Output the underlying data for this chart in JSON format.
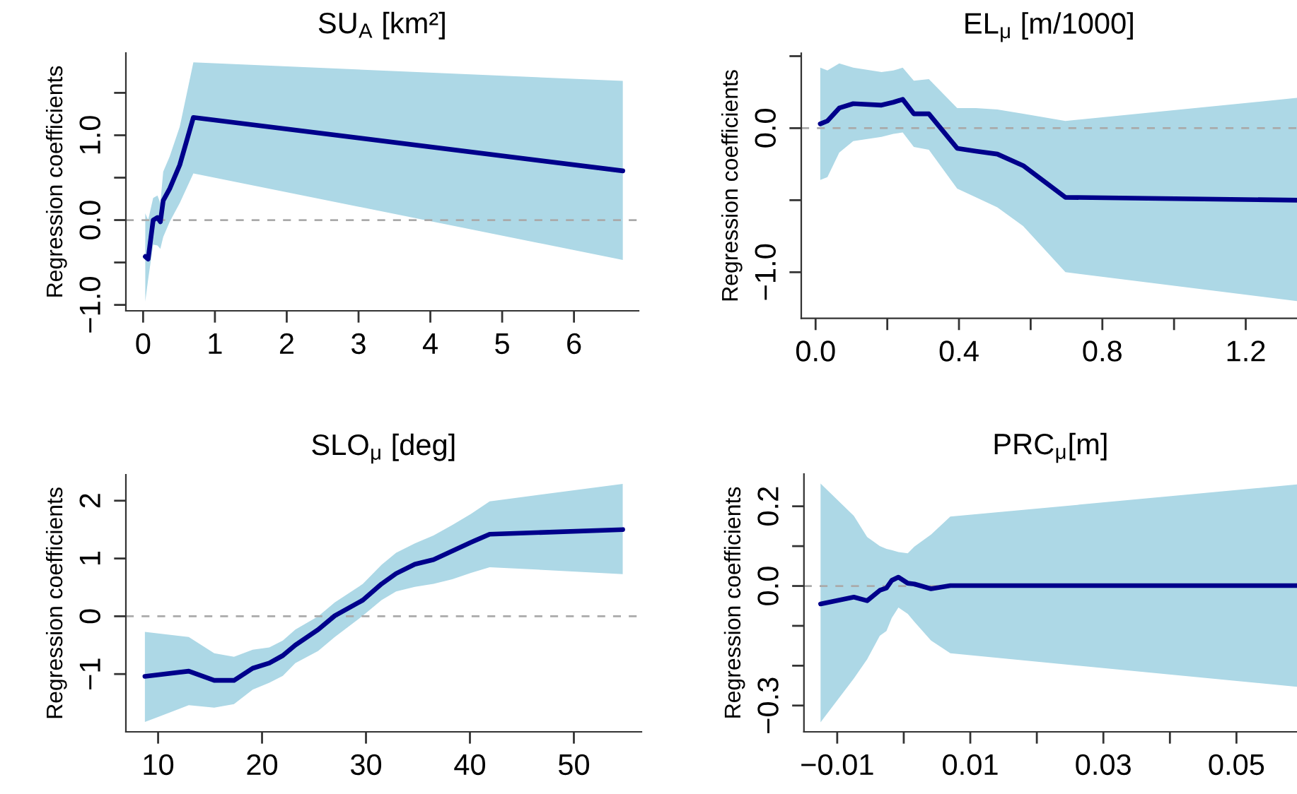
{
  "chart_data": [
    {
      "type": "line",
      "title": "SU$_{A}$ [km²]",
      "ylabel": "Regression coefficients",
      "xlim": [
        -0.24,
        6.9
      ],
      "ylim": [
        -1.07,
        1.97
      ],
      "xticks": [
        0,
        1,
        2,
        3,
        4,
        5,
        6
      ],
      "yticks": [
        {
          "value": -1.0,
          "label": "−1.0"
        },
        {
          "value": -0.5,
          "label": null
        },
        {
          "value": 0.0,
          "label": "0.0"
        },
        {
          "value": 0.5,
          "label": null
        },
        {
          "value": 1.0,
          "label": "1.0"
        },
        {
          "value": 1.5,
          "label": null
        }
      ],
      "ref_lines": [
        {
          "axis": "y",
          "value": 0,
          "color": "#aaaaaa",
          "line_style": "dashed"
        }
      ],
      "series": [
        {
          "color": "#00008b",
          "x": [
            0.03,
            0.07,
            0.14,
            0.2,
            0.24,
            0.28,
            0.37,
            0.51,
            0.7,
            6.68
          ],
          "values": [
            -0.43,
            -0.46,
            0.0,
            0.03,
            -0.02,
            0.23,
            0.37,
            0.65,
            1.21,
            0.58
          ],
          "lower": [
            -0.96,
            -0.7,
            -0.29,
            -0.3,
            -0.34,
            -0.2,
            -0.02,
            0.2,
            0.55,
            -0.47
          ],
          "upper": [
            0.08,
            0.0,
            0.26,
            0.29,
            0.2,
            0.57,
            0.75,
            1.1,
            1.86,
            1.64
          ]
        }
      ]
    },
    {
      "type": "line",
      "title": "EL$_{μ}$ [m/1000]",
      "ylabel": "Regression coefficients",
      "xlim": [
        -0.04,
        1.343
      ],
      "ylim": [
        -1.32,
        0.52
      ],
      "xticks": [
        {
          "value": 0.0,
          "label": "0.0"
        },
        {
          "value": 0.2,
          "label": null
        },
        {
          "value": 0.4,
          "label": "0.4"
        },
        {
          "value": 0.6,
          "label": null
        },
        {
          "value": 0.8,
          "label": "0.8"
        },
        {
          "value": 1.0,
          "label": null
        },
        {
          "value": 1.2,
          "label": "1.2"
        }
      ],
      "yticks": [
        {
          "value": -1.0,
          "label": "−1.0"
        },
        {
          "value": -0.5,
          "label": null
        },
        {
          "value": 0.0,
          "label": "0.0"
        },
        {
          "value": 0.5,
          "label": null
        }
      ],
      "ref_lines": [
        {
          "axis": "y",
          "value": 0,
          "color": "#aaaaaa",
          "line_style": "dashed"
        }
      ],
      "series": [
        {
          "color": "#00008b",
          "x": [
            0.013,
            0.033,
            0.066,
            0.105,
            0.184,
            0.217,
            0.243,
            0.274,
            0.316,
            0.395,
            0.447,
            0.507,
            0.579,
            0.697,
            1.343
          ],
          "values": [
            0.03,
            0.05,
            0.14,
            0.17,
            0.16,
            0.18,
            0.2,
            0.1,
            0.1,
            -0.14,
            -0.16,
            -0.18,
            -0.26,
            -0.48,
            -0.5
          ],
          "lower": [
            -0.36,
            -0.34,
            -0.17,
            -0.09,
            -0.06,
            -0.04,
            -0.03,
            -0.13,
            -0.15,
            -0.42,
            -0.48,
            -0.55,
            -0.68,
            -1.0,
            -1.2
          ],
          "upper": [
            0.42,
            0.4,
            0.45,
            0.42,
            0.39,
            0.4,
            0.42,
            0.33,
            0.34,
            0.14,
            0.14,
            0.13,
            0.1,
            0.05,
            0.21
          ]
        }
      ]
    },
    {
      "type": "line",
      "title": "SLO$_{μ}$ [deg]",
      "ylabel": "Regression coefficients",
      "xlim": [
        6.9,
        56.5
      ],
      "ylim": [
        -2.0,
        2.45
      ],
      "xticks": [
        10,
        20,
        30,
        40,
        50
      ],
      "yticks": [
        {
          "value": -1,
          "label": "−1"
        },
        0,
        1,
        2
      ],
      "ref_lines": [
        {
          "axis": "y",
          "value": 0,
          "color": "#aaaaaa",
          "line_style": "dashed"
        }
      ],
      "series": [
        {
          "color": "#00008b",
          "x": [
            8.73,
            12.95,
            15.4,
            17.3,
            19.1,
            20.7,
            22.0,
            23.2,
            25.4,
            27.0,
            29.7,
            31.5,
            32.9,
            34.7,
            36.5,
            38.3,
            40.1,
            41.9,
            54.7
          ],
          "values": [
            -1.04,
            -0.95,
            -1.11,
            -1.11,
            -0.9,
            -0.81,
            -0.68,
            -0.5,
            -0.23,
            0.01,
            0.28,
            0.56,
            0.74,
            0.9,
            0.98,
            1.13,
            1.28,
            1.42,
            1.5
          ],
          "lower": [
            -1.83,
            -1.54,
            -1.58,
            -1.52,
            -1.27,
            -1.15,
            -1.03,
            -0.81,
            -0.6,
            -0.36,
            0.01,
            0.28,
            0.43,
            0.51,
            0.56,
            0.64,
            0.75,
            0.85,
            0.73
          ],
          "upper": [
            -0.27,
            -0.36,
            -0.64,
            -0.7,
            -0.58,
            -0.54,
            -0.42,
            -0.23,
            0.0,
            0.24,
            0.56,
            0.89,
            1.1,
            1.26,
            1.4,
            1.58,
            1.77,
            1.99,
            2.29
          ]
        }
      ]
    },
    {
      "type": "line",
      "title": "PRC$_{μ}$[m]",
      "ylabel": "Regression coefficients",
      "xlim": [
        -0.015,
        0.0591
      ],
      "ylim": [
        -0.366,
        0.281
      ],
      "xticks": [
        {
          "value": -0.01,
          "label": "−0.01"
        },
        {
          "value": 0.0,
          "label": null
        },
        {
          "value": 0.01,
          "label": "0.01"
        },
        {
          "value": 0.02,
          "label": null
        },
        {
          "value": 0.03,
          "label": "0.03"
        },
        {
          "value": 0.04,
          "label": null
        },
        {
          "value": 0.05,
          "label": "0.05"
        }
      ],
      "yticks": [
        {
          "value": -0.3,
          "label": "−0.3"
        },
        {
          "value": -0.2,
          "label": null
        },
        {
          "value": -0.1,
          "label": null
        },
        {
          "value": 0.0,
          "label": "0.0"
        },
        {
          "value": 0.1,
          "label": null
        },
        {
          "value": 0.2,
          "label": "0.2"
        }
      ],
      "ref_lines": [
        {
          "axis": "y",
          "value": 0,
          "color": "#aaaaaa",
          "line_style": "dashed"
        }
      ],
      "series": [
        {
          "color": "#00008b",
          "x": [
            -0.0125,
            -0.0075,
            -0.0055,
            -0.0036,
            -0.0026,
            -0.0018,
            -0.0008,
            0.0006,
            0.0016,
            0.0041,
            0.007,
            0.0591
          ],
          "values": [
            -0.045,
            -0.028,
            -0.037,
            -0.011,
            -0.005,
            0.014,
            0.022,
            0.007,
            0.005,
            -0.007,
            0.001,
            0.001
          ],
          "lower": [
            -0.342,
            -0.232,
            -0.184,
            -0.125,
            -0.113,
            -0.08,
            -0.054,
            -0.07,
            -0.09,
            -0.137,
            -0.169,
            -0.253
          ],
          "upper": [
            0.257,
            0.176,
            0.123,
            0.1,
            0.093,
            0.09,
            0.085,
            0.082,
            0.099,
            0.129,
            0.174,
            0.255
          ]
        }
      ]
    }
  ]
}
